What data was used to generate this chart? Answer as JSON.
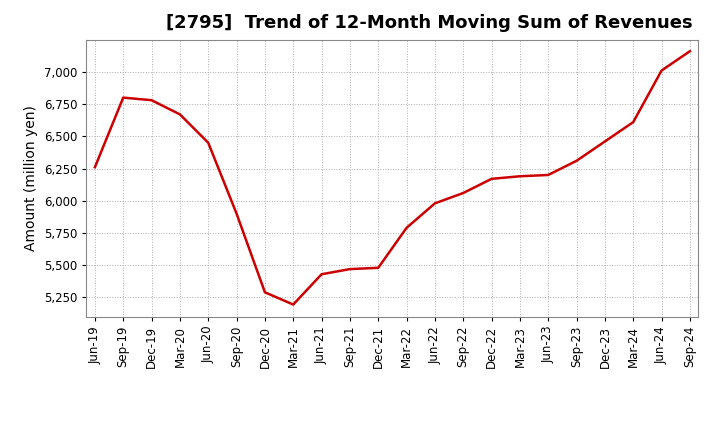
{
  "title": "[2795]  Trend of 12-Month Moving Sum of Revenues",
  "ylabel": "Amount (million yen)",
  "line_color": "#cc0000",
  "background_color": "#ffffff",
  "plot_bg_color": "#ffffff",
  "grid_color": "#b0b0b0",
  "title_fontsize": 13,
  "axis_fontsize": 10,
  "tick_fontsize": 8.5,
  "ylim": [
    5100,
    7250
  ],
  "yticks": [
    5250,
    5500,
    5750,
    6000,
    6250,
    6500,
    6750,
    7000
  ],
  "x_labels": [
    "Jun-19",
    "Sep-19",
    "Dec-19",
    "Mar-20",
    "Jun-20",
    "Sep-20",
    "Dec-20",
    "Mar-21",
    "Jun-21",
    "Sep-21",
    "Dec-21",
    "Mar-22",
    "Jun-22",
    "Sep-22",
    "Dec-22",
    "Mar-23",
    "Jun-23",
    "Sep-23",
    "Dec-23",
    "Mar-24",
    "Jun-24",
    "Sep-24"
  ],
  "x_values": [
    0,
    1,
    2,
    3,
    4,
    5,
    6,
    7,
    8,
    9,
    10,
    11,
    12,
    13,
    14,
    15,
    16,
    17,
    18,
    19,
    20,
    21
  ],
  "y_values": [
    6260,
    6800,
    6780,
    6670,
    6450,
    5900,
    5290,
    5195,
    5430,
    5470,
    5480,
    5790,
    5980,
    6060,
    6170,
    6190,
    6200,
    6310,
    6460,
    6610,
    7010,
    7160
  ],
  "line_width": 1.8
}
